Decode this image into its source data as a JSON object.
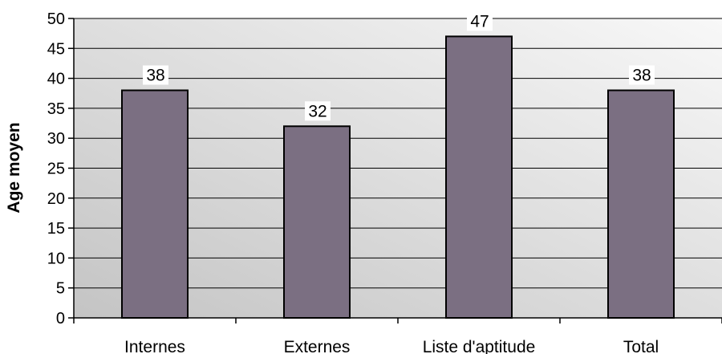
{
  "chart_data": {
    "type": "bar",
    "title": "",
    "xlabel": "",
    "ylabel": "Age moyen",
    "categories": [
      "Internes",
      "Externes",
      "Liste d'aptitude",
      "Total"
    ],
    "values": [
      38,
      32,
      47,
      38
    ],
    "data_labels": [
      "38",
      "32",
      "47",
      "38"
    ],
    "ylim": [
      0,
      50
    ],
    "yticks": [
      0,
      5,
      10,
      15,
      20,
      25,
      30,
      35,
      40,
      45,
      50
    ],
    "grid": true,
    "legend": "none",
    "colors": {
      "bar_fill": "#7b6f82",
      "bar_stroke": "#000000",
      "background_light": "#f8f8f8",
      "background_dark": "#c4c4c4",
      "gridline": "#000000"
    }
  }
}
